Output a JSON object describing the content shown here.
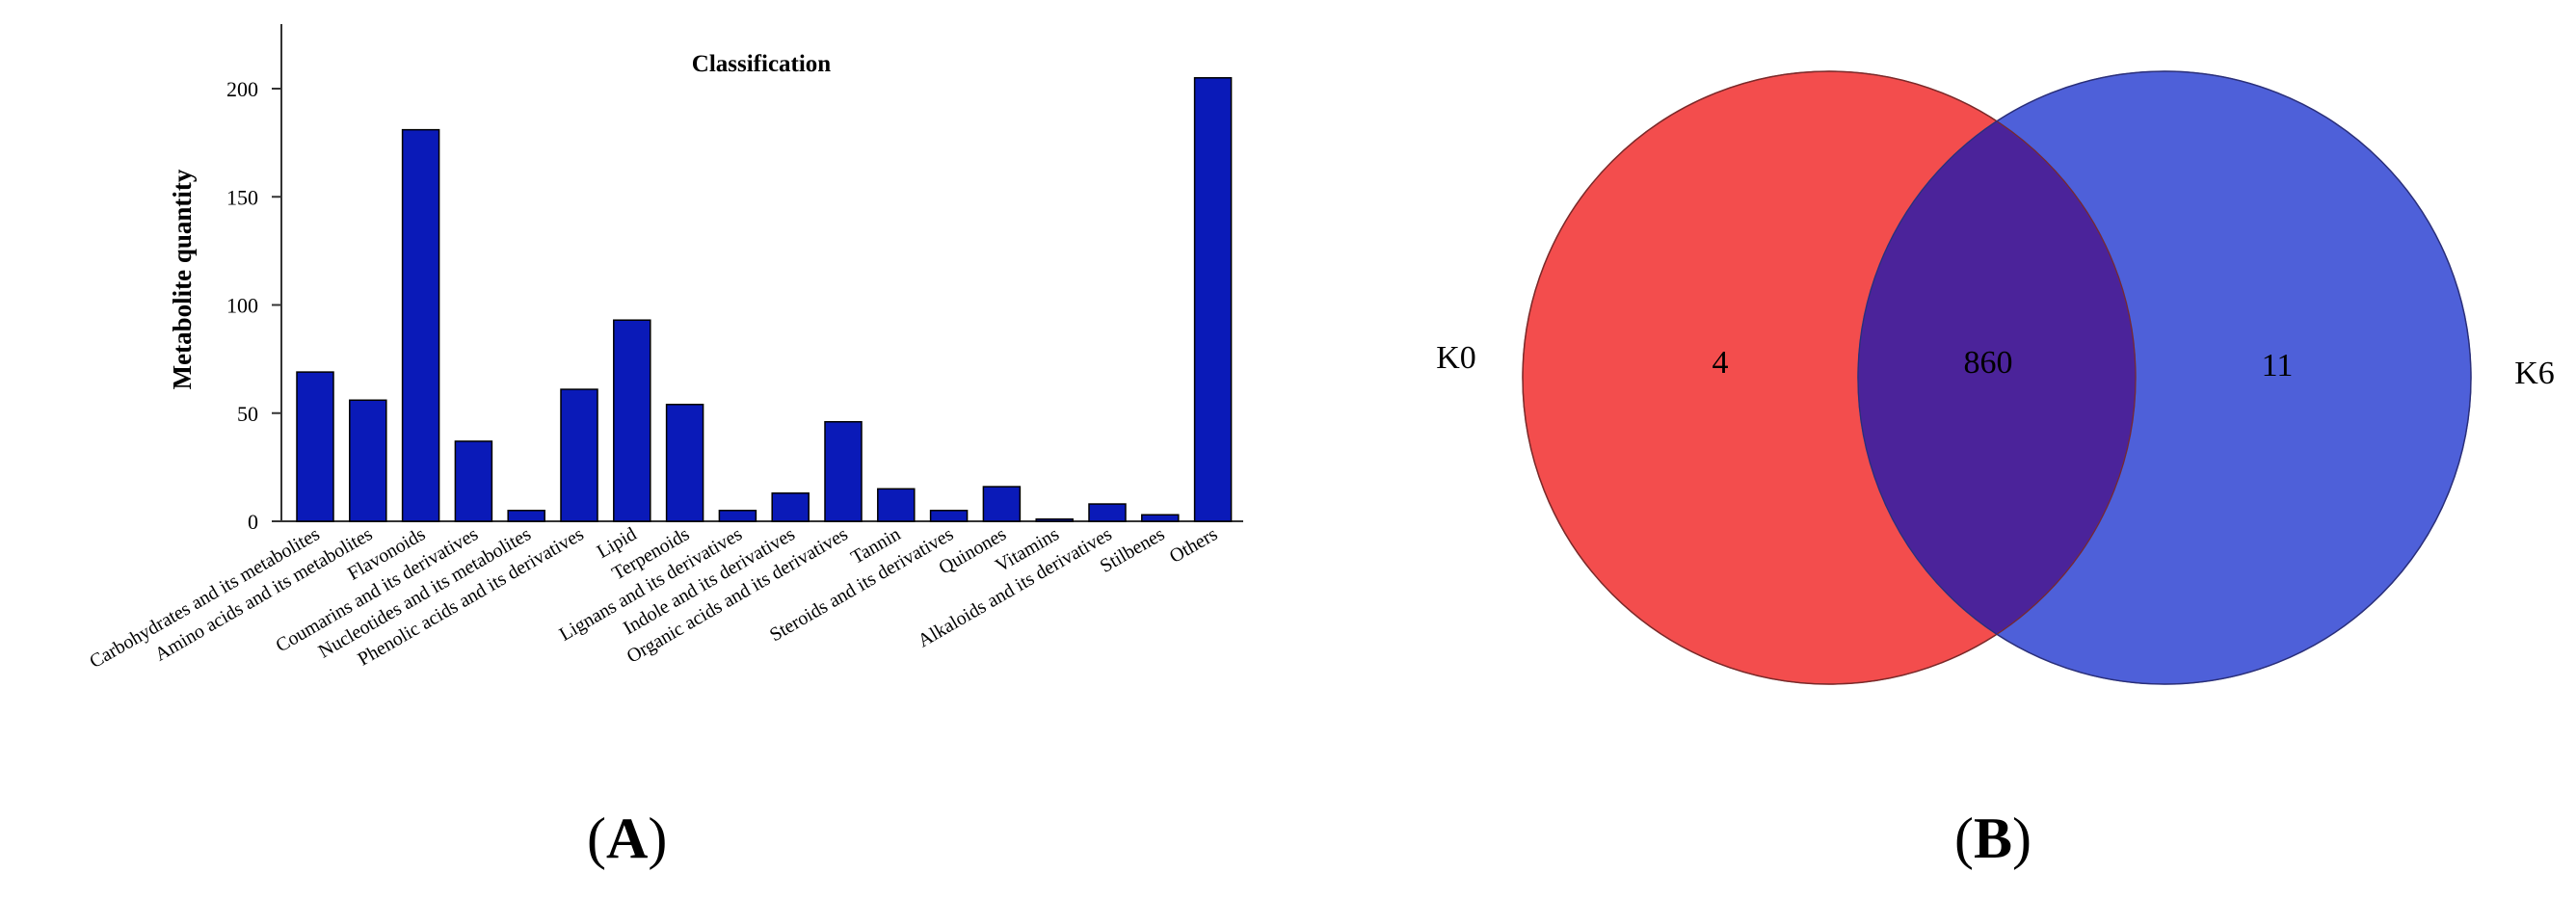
{
  "chart_data": [
    {
      "panel": "A",
      "type": "bar",
      "title": "Classification",
      "xlabel": "",
      "ylabel": "Metabolite quantity",
      "ylim": [
        0,
        230
      ],
      "yticks": [
        0,
        50,
        100,
        150,
        200
      ],
      "grid": false,
      "bar_color": "#0a1ab8",
      "categories": [
        "Carbohydrates and its metabolites",
        "Amino acids and its metabolites",
        "Flavonoids",
        "Coumarins and its derivatives",
        "Nucleotides and its metabolites",
        "Phenolic acids and its derivatives",
        "Lipid",
        "Terpenoids",
        "Lignans and its derivatives",
        "Indole and its derivatives",
        "Organic acids and its derivatives",
        "Tannin",
        "Steroids and its derivatives",
        "Quinones",
        "Vitamins",
        "Alkaloids and its derivatives",
        "Stilbenes",
        "Others"
      ],
      "values": [
        69,
        56,
        181,
        37,
        5,
        61,
        93,
        54,
        5,
        13,
        46,
        15,
        5,
        16,
        1,
        8,
        3,
        205
      ]
    },
    {
      "panel": "B",
      "type": "venn",
      "sets": [
        {
          "name": "K0",
          "color": "#f23a3a"
        },
        {
          "name": "K6",
          "color": "#2f44d2"
        }
      ],
      "overlap_color": "#4b239a",
      "counts": {
        "K0_only": "4",
        "both": "860",
        "K6_only": "11"
      }
    }
  ],
  "labels": {
    "a": "A",
    "b": "B"
  }
}
